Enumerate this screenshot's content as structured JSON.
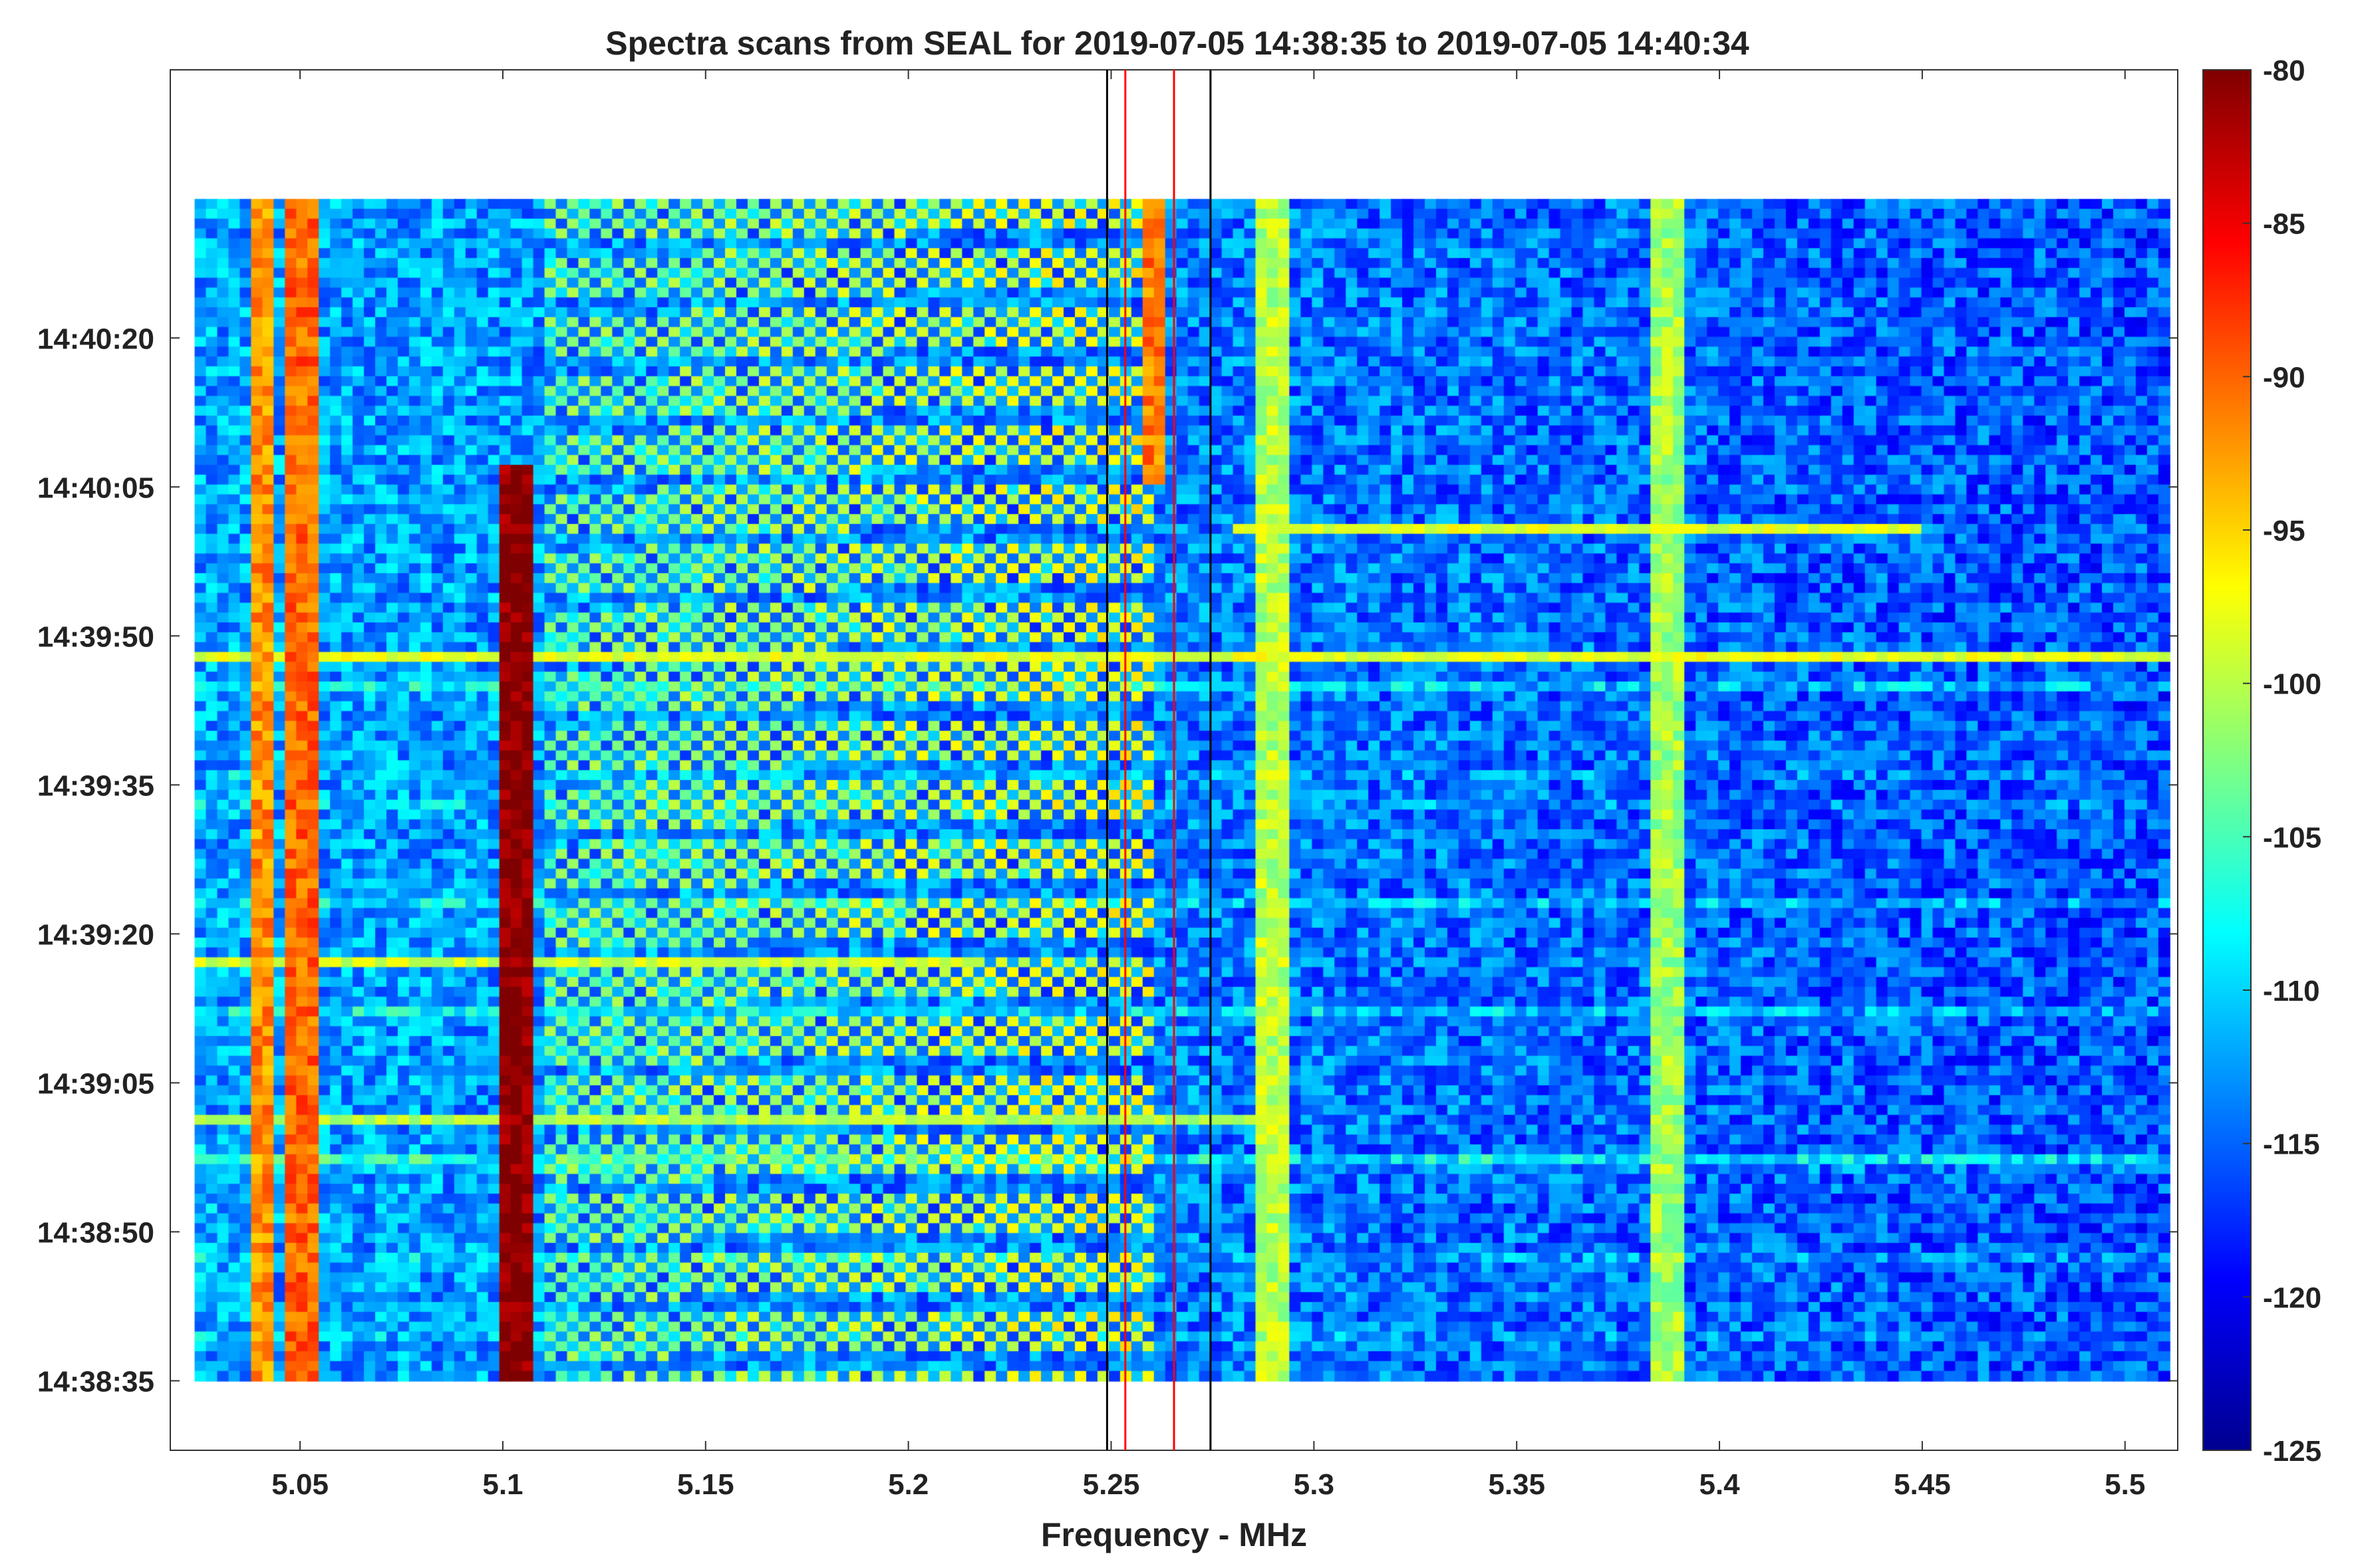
{
  "chart_data": {
    "type": "heatmap",
    "title": "Spectra scans from SEAL for 2019-07-05 14:38:35 to 2019-07-05 14:40:34",
    "xlabel": "Frequency - MHz",
    "ylabel": "",
    "xlim": [
      5.018,
      5.513
    ],
    "ylim": [
      "14:38:28",
      "14:40:47"
    ],
    "data_x_range": [
      5.024,
      5.511
    ],
    "data_time_range": [
      "14:38:35",
      "14:40:34"
    ],
    "x_ticks": [
      "5.05",
      "5.1",
      "5.15",
      "5.2",
      "5.25",
      "5.3",
      "5.35",
      "5.4",
      "5.45",
      "5.5"
    ],
    "x_tick_values": [
      5.05,
      5.1,
      5.15,
      5.2,
      5.25,
      5.3,
      5.35,
      5.4,
      5.45,
      5.5
    ],
    "y_ticks": [
      "14:38:35",
      "14:38:50",
      "14:39:05",
      "14:39:20",
      "14:39:35",
      "14:39:50",
      "14:40:05",
      "14:40:20"
    ],
    "y_tick_seconds": [
      0,
      15,
      30,
      45,
      60,
      75,
      90,
      105
    ],
    "colorbar": {
      "min": -125,
      "max": -80,
      "ticks": [
        "-80",
        "-85",
        "-90",
        "-95",
        "-100",
        "-105",
        "-110",
        "-115",
        "-120",
        "-125"
      ],
      "colormap": "jet"
    },
    "marker_lines": [
      {
        "freq": 5.249,
        "color": "#000000"
      },
      {
        "freq": 5.2535,
        "color": "#ff0000"
      },
      {
        "freq": 5.2655,
        "color": "#ff0000"
      },
      {
        "freq": 5.2745,
        "color": "#000000"
      }
    ],
    "features": [
      {
        "kind": "vertical_band",
        "freq": 5.041,
        "width": 0.004,
        "level": -92
      },
      {
        "kind": "vertical_band",
        "freq": 5.051,
        "width": 0.004,
        "level": -90
      },
      {
        "kind": "vertical_band",
        "freq": 5.103,
        "width": 0.007,
        "level": -80,
        "time_range": [
          0,
          92
        ]
      },
      {
        "kind": "vertical_band",
        "freq": 5.2605,
        "width": 0.005,
        "level": -91,
        "time_range": [
          90,
          119
        ]
      },
      {
        "kind": "vertical_band",
        "freq": 5.387,
        "width": 0.004,
        "level": -101
      },
      {
        "kind": "vertical_band",
        "freq": 5.29,
        "width": 0.004,
        "level": -100
      },
      {
        "kind": "diagonal_sweeps",
        "freq_range": [
          5.11,
          5.26
        ],
        "count": 20,
        "level": -97
      },
      {
        "kind": "horizontal_line",
        "time": 73,
        "freq_range": [
          5.024,
          5.511
        ],
        "level": -98
      },
      {
        "kind": "horizontal_line",
        "time": 42,
        "freq_range": [
          5.024,
          5.22
        ],
        "level": -99
      },
      {
        "kind": "horizontal_line",
        "time": 26,
        "freq_range": [
          5.024,
          5.29
        ],
        "level": -100
      },
      {
        "kind": "horizontal_line",
        "time": 86,
        "freq_range": [
          5.28,
          5.45
        ],
        "level": -98
      }
    ]
  }
}
